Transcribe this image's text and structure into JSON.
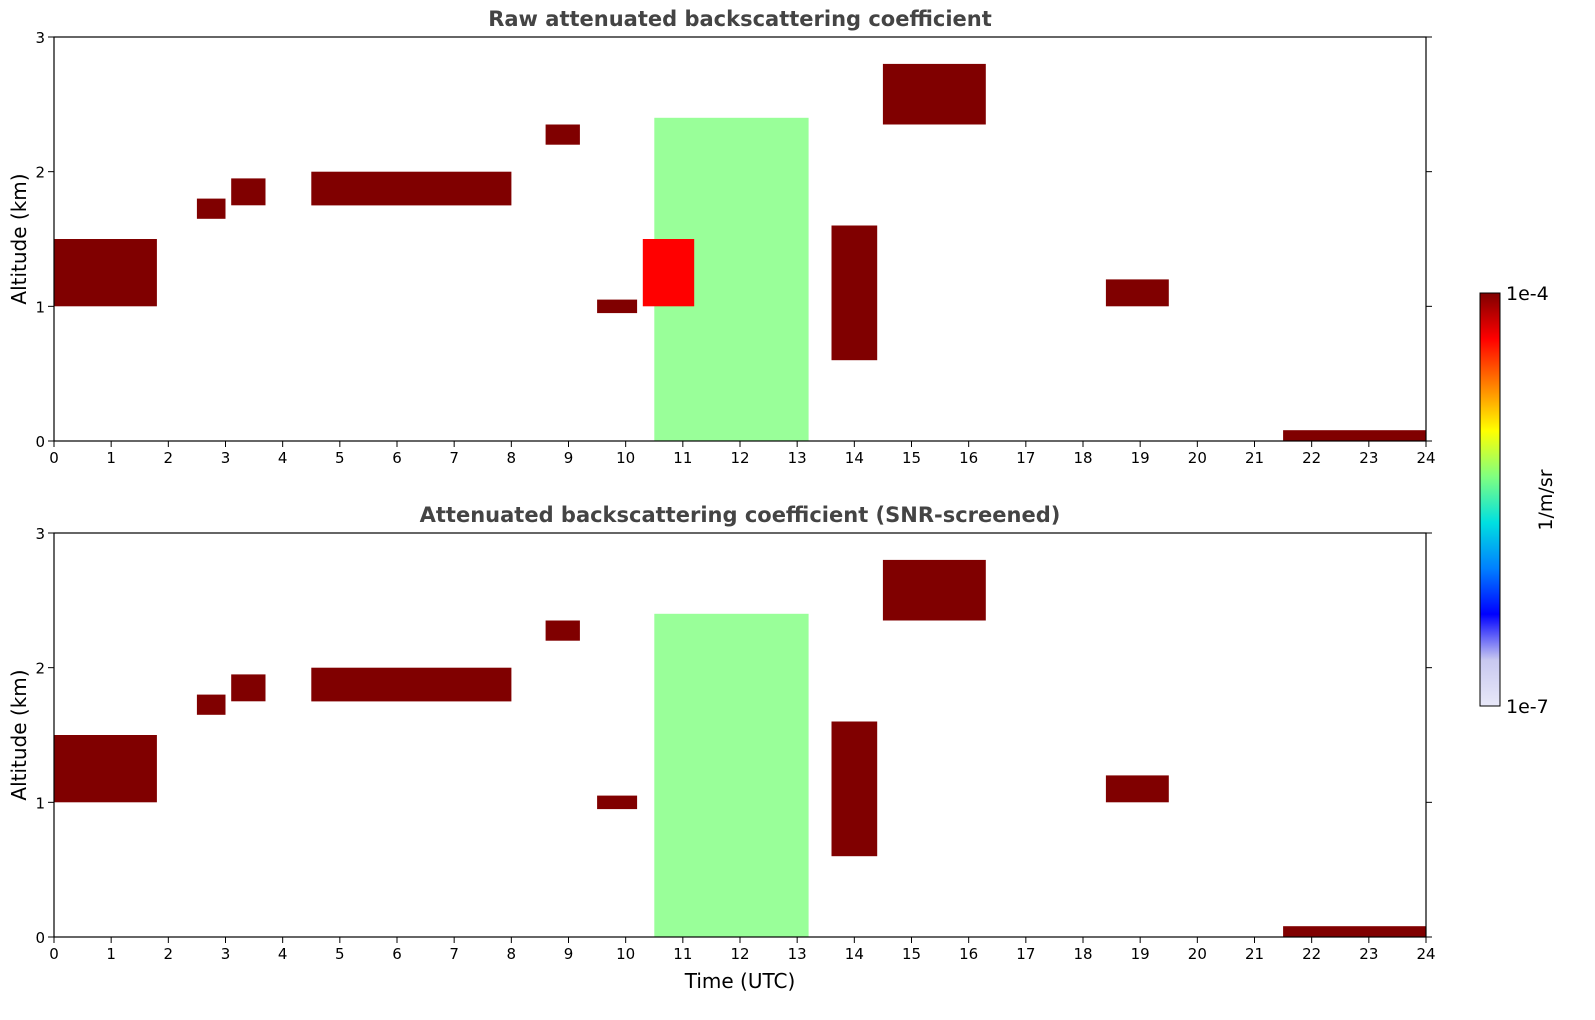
{
  "chart_data": [
    {
      "type": "heatmap",
      "title": "Raw attenuated backscattering coefficient",
      "xlabel": "",
      "ylabel": "Altitude (km)",
      "xlim": [
        0,
        24
      ],
      "ylim": [
        0,
        3
      ],
      "x_ticks": [
        "0",
        "1",
        "2",
        "3",
        "4",
        "5",
        "6",
        "7",
        "8",
        "9",
        "10",
        "11",
        "12",
        "13",
        "14",
        "15",
        "16",
        "17",
        "18",
        "19",
        "20",
        "21",
        "22",
        "23",
        "24"
      ],
      "y_ticks": [
        "0",
        "1",
        "2",
        "3"
      ],
      "features": [
        {
          "kind": "cloud",
          "t": [
            0.0,
            1.8
          ],
          "alt": [
            1.0,
            1.5
          ],
          "level": 0.95
        },
        {
          "kind": "cloud",
          "t": [
            2.5,
            3.0
          ],
          "alt": [
            1.65,
            1.8
          ],
          "level": 0.95
        },
        {
          "kind": "cloud",
          "t": [
            3.1,
            3.7
          ],
          "alt": [
            1.75,
            1.95
          ],
          "level": 0.95
        },
        {
          "kind": "cloud",
          "t": [
            4.5,
            8.0
          ],
          "alt": [
            1.75,
            2.0
          ],
          "level": 0.95
        },
        {
          "kind": "cloud",
          "t": [
            8.6,
            9.2
          ],
          "alt": [
            2.2,
            2.35
          ],
          "level": 0.95
        },
        {
          "kind": "cloud",
          "t": [
            9.5,
            10.2
          ],
          "alt": [
            0.95,
            1.05
          ],
          "level": 0.95
        },
        {
          "kind": "aerosol",
          "t": [
            10.5,
            13.2
          ],
          "alt": [
            0.0,
            2.4
          ],
          "level": 0.55
        },
        {
          "kind": "cloud",
          "t": [
            10.3,
            11.2
          ],
          "alt": [
            1.0,
            1.5
          ],
          "level": 0.9
        },
        {
          "kind": "cloud",
          "t": [
            13.6,
            14.4
          ],
          "alt": [
            0.6,
            1.6
          ],
          "level": 0.95
        },
        {
          "kind": "cloud",
          "t": [
            14.5,
            16.3
          ],
          "alt": [
            2.35,
            2.8
          ],
          "level": 0.95
        },
        {
          "kind": "cloud",
          "t": [
            18.4,
            19.5
          ],
          "alt": [
            1.0,
            1.2
          ],
          "level": 0.95
        },
        {
          "kind": "fog",
          "t": [
            21.5,
            24.0
          ],
          "alt": [
            0.0,
            0.08
          ],
          "level": 0.95
        }
      ]
    },
    {
      "type": "heatmap",
      "title": "Attenuated backscattering coefficient (SNR-screened)",
      "xlabel": "Time (UTC)",
      "ylabel": "Altitude (km)",
      "xlim": [
        0,
        24
      ],
      "ylim": [
        0,
        3
      ],
      "x_ticks": [
        "0",
        "1",
        "2",
        "3",
        "4",
        "5",
        "6",
        "7",
        "8",
        "9",
        "10",
        "11",
        "12",
        "13",
        "14",
        "15",
        "16",
        "17",
        "18",
        "19",
        "20",
        "21",
        "22",
        "23",
        "24"
      ],
      "y_ticks": [
        "0",
        "1",
        "2",
        "3"
      ],
      "features": [
        {
          "kind": "cloud",
          "t": [
            0.0,
            1.8
          ],
          "alt": [
            1.0,
            1.5
          ],
          "level": 1.0
        },
        {
          "kind": "cloud",
          "t": [
            2.5,
            3.0
          ],
          "alt": [
            1.65,
            1.8
          ],
          "level": 1.0
        },
        {
          "kind": "cloud",
          "t": [
            3.1,
            3.7
          ],
          "alt": [
            1.75,
            1.95
          ],
          "level": 1.0
        },
        {
          "kind": "cloud",
          "t": [
            4.5,
            8.0
          ],
          "alt": [
            1.75,
            2.0
          ],
          "level": 1.0
        },
        {
          "kind": "cloud",
          "t": [
            8.6,
            9.2
          ],
          "alt": [
            2.2,
            2.35
          ],
          "level": 1.0
        },
        {
          "kind": "cloud",
          "t": [
            9.5,
            10.2
          ],
          "alt": [
            0.95,
            1.05
          ],
          "level": 1.0
        },
        {
          "kind": "aerosol",
          "t": [
            10.5,
            13.2
          ],
          "alt": [
            0.0,
            2.4
          ],
          "level": 0.55
        },
        {
          "kind": "cloud",
          "t": [
            13.6,
            14.4
          ],
          "alt": [
            0.6,
            1.6
          ],
          "level": 1.0
        },
        {
          "kind": "cloud",
          "t": [
            14.5,
            16.3
          ],
          "alt": [
            2.35,
            2.8
          ],
          "level": 1.0
        },
        {
          "kind": "cloud",
          "t": [
            18.4,
            19.5
          ],
          "alt": [
            1.0,
            1.2
          ],
          "level": 1.0
        },
        {
          "kind": "fog",
          "t": [
            21.5,
            24.0
          ],
          "alt": [
            0.0,
            0.08
          ],
          "level": 0.95
        }
      ]
    }
  ],
  "colorbar": {
    "label": "1/m/sr",
    "max_label": "1e-4",
    "min_label": "1e-7",
    "colormap": [
      "#e8e8f8",
      "#c8c8f0",
      "#0000ff",
      "#0080ff",
      "#00e0e0",
      "#80ff80",
      "#ffff00",
      "#ff8000",
      "#ff0000",
      "#800000"
    ]
  }
}
